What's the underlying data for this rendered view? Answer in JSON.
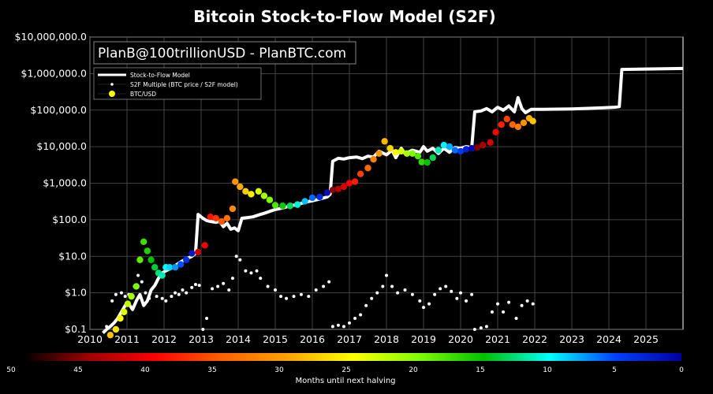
{
  "chart_data": {
    "type": "scatter",
    "title": "Bitcoin Stock-to-Flow Model (S2F)",
    "annotation": "PlanB@100trillionUSD - PlanBTC.com",
    "y_scale": "log",
    "ylim": [
      0.1,
      10000000
    ],
    "xlim": [
      2010,
      2026
    ],
    "grid": true,
    "legend_placement": "top-left",
    "x_ticks": [
      "2010",
      "2011",
      "2012",
      "2013",
      "2014",
      "2015",
      "2016",
      "2017",
      "2018",
      "2019",
      "2020",
      "2021",
      "2022",
      "2023",
      "2024",
      "2025"
    ],
    "y_ticks": [
      {
        "value": 0.1,
        "label": "$0.1"
      },
      {
        "value": 1,
        "label": "$1.0"
      },
      {
        "value": 10,
        "label": "$10.0"
      },
      {
        "value": 100,
        "label": "$100.0"
      },
      {
        "value": 1000,
        "label": "$1,000.0"
      },
      {
        "value": 10000,
        "label": "$10,000.0"
      },
      {
        "value": 100000,
        "label": "$100,000.0"
      },
      {
        "value": 1000000,
        "label": "$1,000,000.0"
      },
      {
        "value": 10000000,
        "label": "$10,000,000.0"
      }
    ],
    "legend": [
      {
        "label": "Stock-to-Flow Model",
        "style": "line",
        "color": "#ffffff"
      },
      {
        "label": "S2F Multiple (BTC price / S2F model)",
        "style": "dot",
        "color": "#ffffff"
      },
      {
        "label": "BTC/USD",
        "style": "dot",
        "color": "#ffff00"
      }
    ],
    "colorbar": {
      "label": "Months until next halving",
      "ticks": [
        "50",
        "45",
        "40",
        "35",
        "30",
        "25",
        "20",
        "15",
        "10",
        "5",
        "0"
      ],
      "min": 0,
      "max": 50,
      "stops": [
        "#000000",
        "#a00000",
        "#ff0000",
        "#ff6000",
        "#ffa000",
        "#ffff00",
        "#80ff00",
        "#00c000",
        "#00ffff",
        "#0040ff",
        "#0000a0"
      ]
    },
    "halving_years": [
      2012.9,
      2016.5,
      2020.36,
      2024.3
    ],
    "series": [
      {
        "name": "Stock-to-Flow Model",
        "points": [
          [
            2010.35,
            0.08
          ],
          [
            2010.45,
            0.1
          ],
          [
            2010.55,
            0.12
          ],
          [
            2010.65,
            0.15
          ],
          [
            2010.75,
            0.2
          ],
          [
            2010.85,
            0.3
          ],
          [
            2010.95,
            0.45
          ],
          [
            2011.05,
            0.5
          ],
          [
            2011.15,
            0.35
          ],
          [
            2011.25,
            0.6
          ],
          [
            2011.35,
            0.9
          ],
          [
            2011.45,
            0.45
          ],
          [
            2011.55,
            0.6
          ],
          [
            2011.65,
            1.2
          ],
          [
            2011.75,
            1.6
          ],
          [
            2011.85,
            2.5
          ],
          [
            2011.95,
            3.5
          ],
          [
            2012.05,
            4
          ],
          [
            2012.15,
            4.5
          ],
          [
            2012.25,
            5
          ],
          [
            2012.35,
            6
          ],
          [
            2012.45,
            7
          ],
          [
            2012.55,
            8
          ],
          [
            2012.65,
            9
          ],
          [
            2012.75,
            10
          ],
          [
            2012.85,
            12
          ],
          [
            2012.92,
            140
          ],
          [
            2013.05,
            110
          ],
          [
            2013.15,
            95
          ],
          [
            2013.25,
            90
          ],
          [
            2013.4,
            85
          ],
          [
            2013.5,
            90
          ],
          [
            2013.6,
            65
          ],
          [
            2013.7,
            80
          ],
          [
            2013.8,
            55
          ],
          [
            2013.9,
            60
          ],
          [
            2014.0,
            50
          ],
          [
            2014.1,
            110
          ],
          [
            2014.25,
            115
          ],
          [
            2014.4,
            120
          ],
          [
            2014.55,
            135
          ],
          [
            2014.7,
            150
          ],
          [
            2014.85,
            170
          ],
          [
            2015.0,
            190
          ],
          [
            2015.2,
            210
          ],
          [
            2015.4,
            240
          ],
          [
            2015.6,
            260
          ],
          [
            2015.8,
            300
          ],
          [
            2016.0,
            330
          ],
          [
            2016.2,
            370
          ],
          [
            2016.4,
            420
          ],
          [
            2016.48,
            500
          ],
          [
            2016.55,
            4000
          ],
          [
            2016.7,
            4800
          ],
          [
            2016.85,
            4600
          ],
          [
            2017.0,
            5000
          ],
          [
            2017.2,
            5200
          ],
          [
            2017.35,
            4700
          ],
          [
            2017.5,
            5500
          ],
          [
            2017.65,
            5200
          ],
          [
            2017.8,
            7500
          ],
          [
            2018.0,
            6000
          ],
          [
            2018.15,
            8000
          ],
          [
            2018.25,
            5000
          ],
          [
            2018.4,
            9000
          ],
          [
            2018.5,
            6500
          ],
          [
            2018.7,
            8000
          ],
          [
            2018.9,
            7000
          ],
          [
            2019.0,
            10000
          ],
          [
            2019.1,
            7500
          ],
          [
            2019.25,
            9000
          ],
          [
            2019.4,
            6500
          ],
          [
            2019.55,
            9000
          ],
          [
            2019.7,
            7000
          ],
          [
            2019.85,
            9500
          ],
          [
            2020.0,
            9000
          ],
          [
            2020.15,
            10000
          ],
          [
            2020.3,
            9500
          ],
          [
            2020.38,
            90000
          ],
          [
            2020.55,
            95000
          ],
          [
            2020.7,
            110000
          ],
          [
            2020.85,
            90000
          ],
          [
            2021.0,
            120000
          ],
          [
            2021.15,
            100000
          ],
          [
            2021.3,
            130000
          ],
          [
            2021.45,
            90000
          ],
          [
            2021.55,
            220000
          ],
          [
            2021.65,
            110000
          ],
          [
            2021.75,
            85000
          ],
          [
            2021.9,
            105000
          ],
          [
            2022.2,
            105000
          ],
          [
            2023.0,
            108000
          ],
          [
            2023.8,
            115000
          ],
          [
            2024.15,
            120000
          ],
          [
            2024.28,
            125000
          ],
          [
            2024.35,
            1300000
          ],
          [
            2025.0,
            1330000
          ],
          [
            2026.0,
            1380000
          ]
        ]
      },
      {
        "name": "S2F Multiple (BTC price / S2F model)",
        "points": [
          [
            2010.45,
            0.12
          ],
          [
            2010.6,
            0.6
          ],
          [
            2010.7,
            0.9
          ],
          [
            2010.85,
            1.0
          ],
          [
            2010.95,
            0.8
          ],
          [
            2011.05,
            0.9
          ],
          [
            2011.2,
            1.5
          ],
          [
            2011.3,
            3
          ],
          [
            2011.4,
            2
          ],
          [
            2011.5,
            1.0
          ],
          [
            2011.6,
            0.7
          ],
          [
            2011.8,
            0.8
          ],
          [
            2011.95,
            0.7
          ],
          [
            2012.05,
            0.6
          ],
          [
            2012.2,
            0.8
          ],
          [
            2012.3,
            1.0
          ],
          [
            2012.4,
            0.9
          ],
          [
            2012.5,
            1.2
          ],
          [
            2012.6,
            1.0
          ],
          [
            2012.75,
            1.4
          ],
          [
            2012.85,
            1.7
          ],
          [
            2012.95,
            1.6
          ],
          [
            2013.05,
            0.1
          ],
          [
            2013.15,
            0.2
          ],
          [
            2013.3,
            1.3
          ],
          [
            2013.45,
            1.5
          ],
          [
            2013.6,
            1.8
          ],
          [
            2013.75,
            1.2
          ],
          [
            2013.85,
            2.5
          ],
          [
            2013.95,
            10
          ],
          [
            2014.05,
            8
          ],
          [
            2014.2,
            4
          ],
          [
            2014.35,
            3.5
          ],
          [
            2014.5,
            4
          ],
          [
            2014.6,
            2.5
          ],
          [
            2014.8,
            1.5
          ],
          [
            2015.0,
            1.2
          ],
          [
            2015.15,
            0.8
          ],
          [
            2015.3,
            0.7
          ],
          [
            2015.5,
            0.8
          ],
          [
            2015.7,
            0.9
          ],
          [
            2015.9,
            0.8
          ],
          [
            2016.1,
            1.2
          ],
          [
            2016.3,
            1.5
          ],
          [
            2016.45,
            2
          ],
          [
            2016.55,
            0.12
          ],
          [
            2016.7,
            0.13
          ],
          [
            2016.85,
            0.12
          ],
          [
            2017.0,
            0.15
          ],
          [
            2017.15,
            0.2
          ],
          [
            2017.3,
            0.25
          ],
          [
            2017.45,
            0.45
          ],
          [
            2017.6,
            0.7
          ],
          [
            2017.75,
            1.0
          ],
          [
            2017.9,
            1.5
          ],
          [
            2018.0,
            3
          ],
          [
            2018.15,
            1.5
          ],
          [
            2018.3,
            1.0
          ],
          [
            2018.5,
            1.2
          ],
          [
            2018.7,
            0.9
          ],
          [
            2018.9,
            0.6
          ],
          [
            2019.0,
            0.4
          ],
          [
            2019.15,
            0.5
          ],
          [
            2019.3,
            0.9
          ],
          [
            2019.45,
            1.3
          ],
          [
            2019.6,
            1.5
          ],
          [
            2019.75,
            1.1
          ],
          [
            2019.9,
            0.7
          ],
          [
            2020.0,
            1.0
          ],
          [
            2020.15,
            0.6
          ],
          [
            2020.3,
            0.9
          ],
          [
            2020.38,
            0.1
          ],
          [
            2020.55,
            0.11
          ],
          [
            2020.7,
            0.12
          ],
          [
            2020.85,
            0.3
          ],
          [
            2021.0,
            0.5
          ],
          [
            2021.15,
            0.3
          ],
          [
            2021.3,
            0.55
          ],
          [
            2021.5,
            0.2
          ],
          [
            2021.65,
            0.45
          ],
          [
            2021.8,
            0.6
          ],
          [
            2021.95,
            0.5
          ]
        ]
      },
      {
        "name": "BTC/USD",
        "points": [
          [
            2010.55,
            0.07
          ],
          [
            2010.7,
            0.1
          ],
          [
            2010.82,
            0.2
          ],
          [
            2010.92,
            0.3
          ],
          [
            2011.02,
            0.5
          ],
          [
            2011.12,
            0.8
          ],
          [
            2011.25,
            1.5
          ],
          [
            2011.35,
            8
          ],
          [
            2011.45,
            25
          ],
          [
            2011.55,
            14
          ],
          [
            2011.65,
            8
          ],
          [
            2011.75,
            5
          ],
          [
            2011.85,
            3.5
          ],
          [
            2011.95,
            3
          ],
          [
            2012.05,
            5
          ],
          [
            2012.15,
            5
          ],
          [
            2012.3,
            5
          ],
          [
            2012.45,
            6
          ],
          [
            2012.6,
            8
          ],
          [
            2012.75,
            12
          ],
          [
            2012.92,
            13
          ],
          [
            2013.1,
            20
          ],
          [
            2013.25,
            120
          ],
          [
            2013.4,
            110
          ],
          [
            2013.55,
            90
          ],
          [
            2013.7,
            110
          ],
          [
            2013.85,
            200
          ],
          [
            2013.92,
            1100
          ],
          [
            2014.05,
            800
          ],
          [
            2014.2,
            600
          ],
          [
            2014.35,
            500
          ],
          [
            2014.55,
            600
          ],
          [
            2014.7,
            450
          ],
          [
            2014.85,
            350
          ],
          [
            2015.0,
            250
          ],
          [
            2015.2,
            240
          ],
          [
            2015.4,
            240
          ],
          [
            2015.6,
            260
          ],
          [
            2015.8,
            320
          ],
          [
            2016.0,
            400
          ],
          [
            2016.2,
            420
          ],
          [
            2016.4,
            550
          ],
          [
            2016.55,
            650
          ],
          [
            2016.7,
            700
          ],
          [
            2016.85,
            800
          ],
          [
            2017.0,
            1000
          ],
          [
            2017.15,
            1100
          ],
          [
            2017.3,
            1800
          ],
          [
            2017.5,
            2600
          ],
          [
            2017.65,
            4500
          ],
          [
            2017.8,
            6500
          ],
          [
            2017.95,
            14000
          ],
          [
            2018.1,
            9000
          ],
          [
            2018.25,
            7000
          ],
          [
            2018.4,
            7500
          ],
          [
            2018.55,
            6500
          ],
          [
            2018.7,
            6500
          ],
          [
            2018.85,
            5500
          ],
          [
            2018.95,
            3800
          ],
          [
            2019.1,
            3700
          ],
          [
            2019.25,
            5000
          ],
          [
            2019.4,
            8000
          ],
          [
            2019.55,
            11000
          ],
          [
            2019.7,
            10000
          ],
          [
            2019.85,
            8000
          ],
          [
            2020.0,
            7500
          ],
          [
            2020.15,
            8500
          ],
          [
            2020.3,
            9000
          ],
          [
            2020.45,
            9500
          ],
          [
            2020.6,
            11000
          ],
          [
            2020.8,
            13000
          ],
          [
            2020.95,
            25000
          ],
          [
            2021.1,
            40000
          ],
          [
            2021.25,
            57000
          ],
          [
            2021.4,
            40000
          ],
          [
            2021.55,
            35000
          ],
          [
            2021.7,
            45000
          ],
          [
            2021.85,
            60000
          ],
          [
            2021.95,
            50000
          ]
        ]
      }
    ]
  }
}
